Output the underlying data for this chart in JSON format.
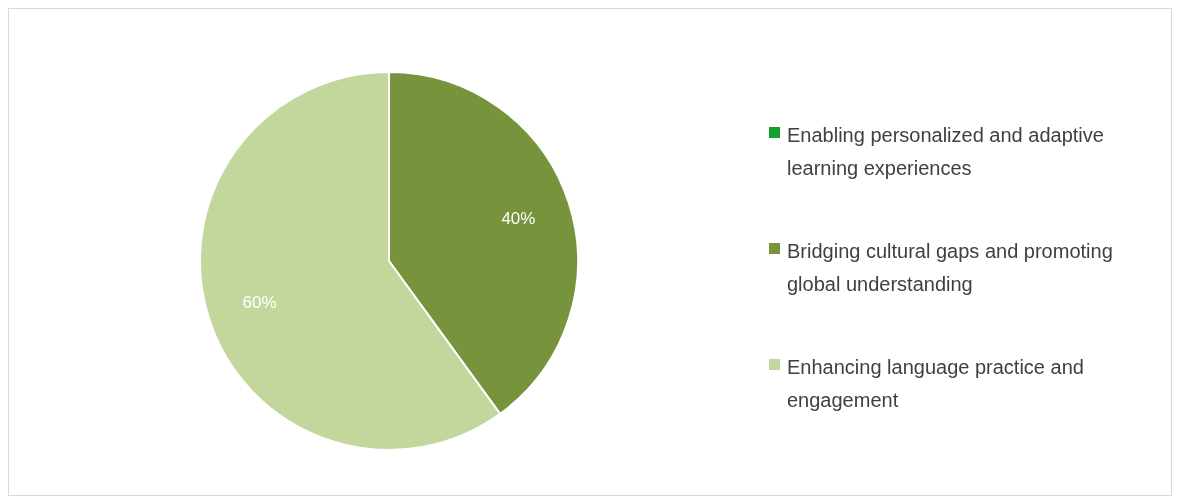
{
  "chart_data": {
    "type": "pie",
    "categories": [
      "Enabling personalized and adaptive learning experiences",
      "Bridging cultural gaps and promoting global understanding",
      "Enhancing language practice and engagement"
    ],
    "values": [
      0,
      40,
      60
    ],
    "colors": [
      "#12a12a",
      "#77933c",
      "#c3d69b"
    ],
    "value_labels": [
      null,
      "40%",
      "60%"
    ],
    "legend": "right"
  }
}
